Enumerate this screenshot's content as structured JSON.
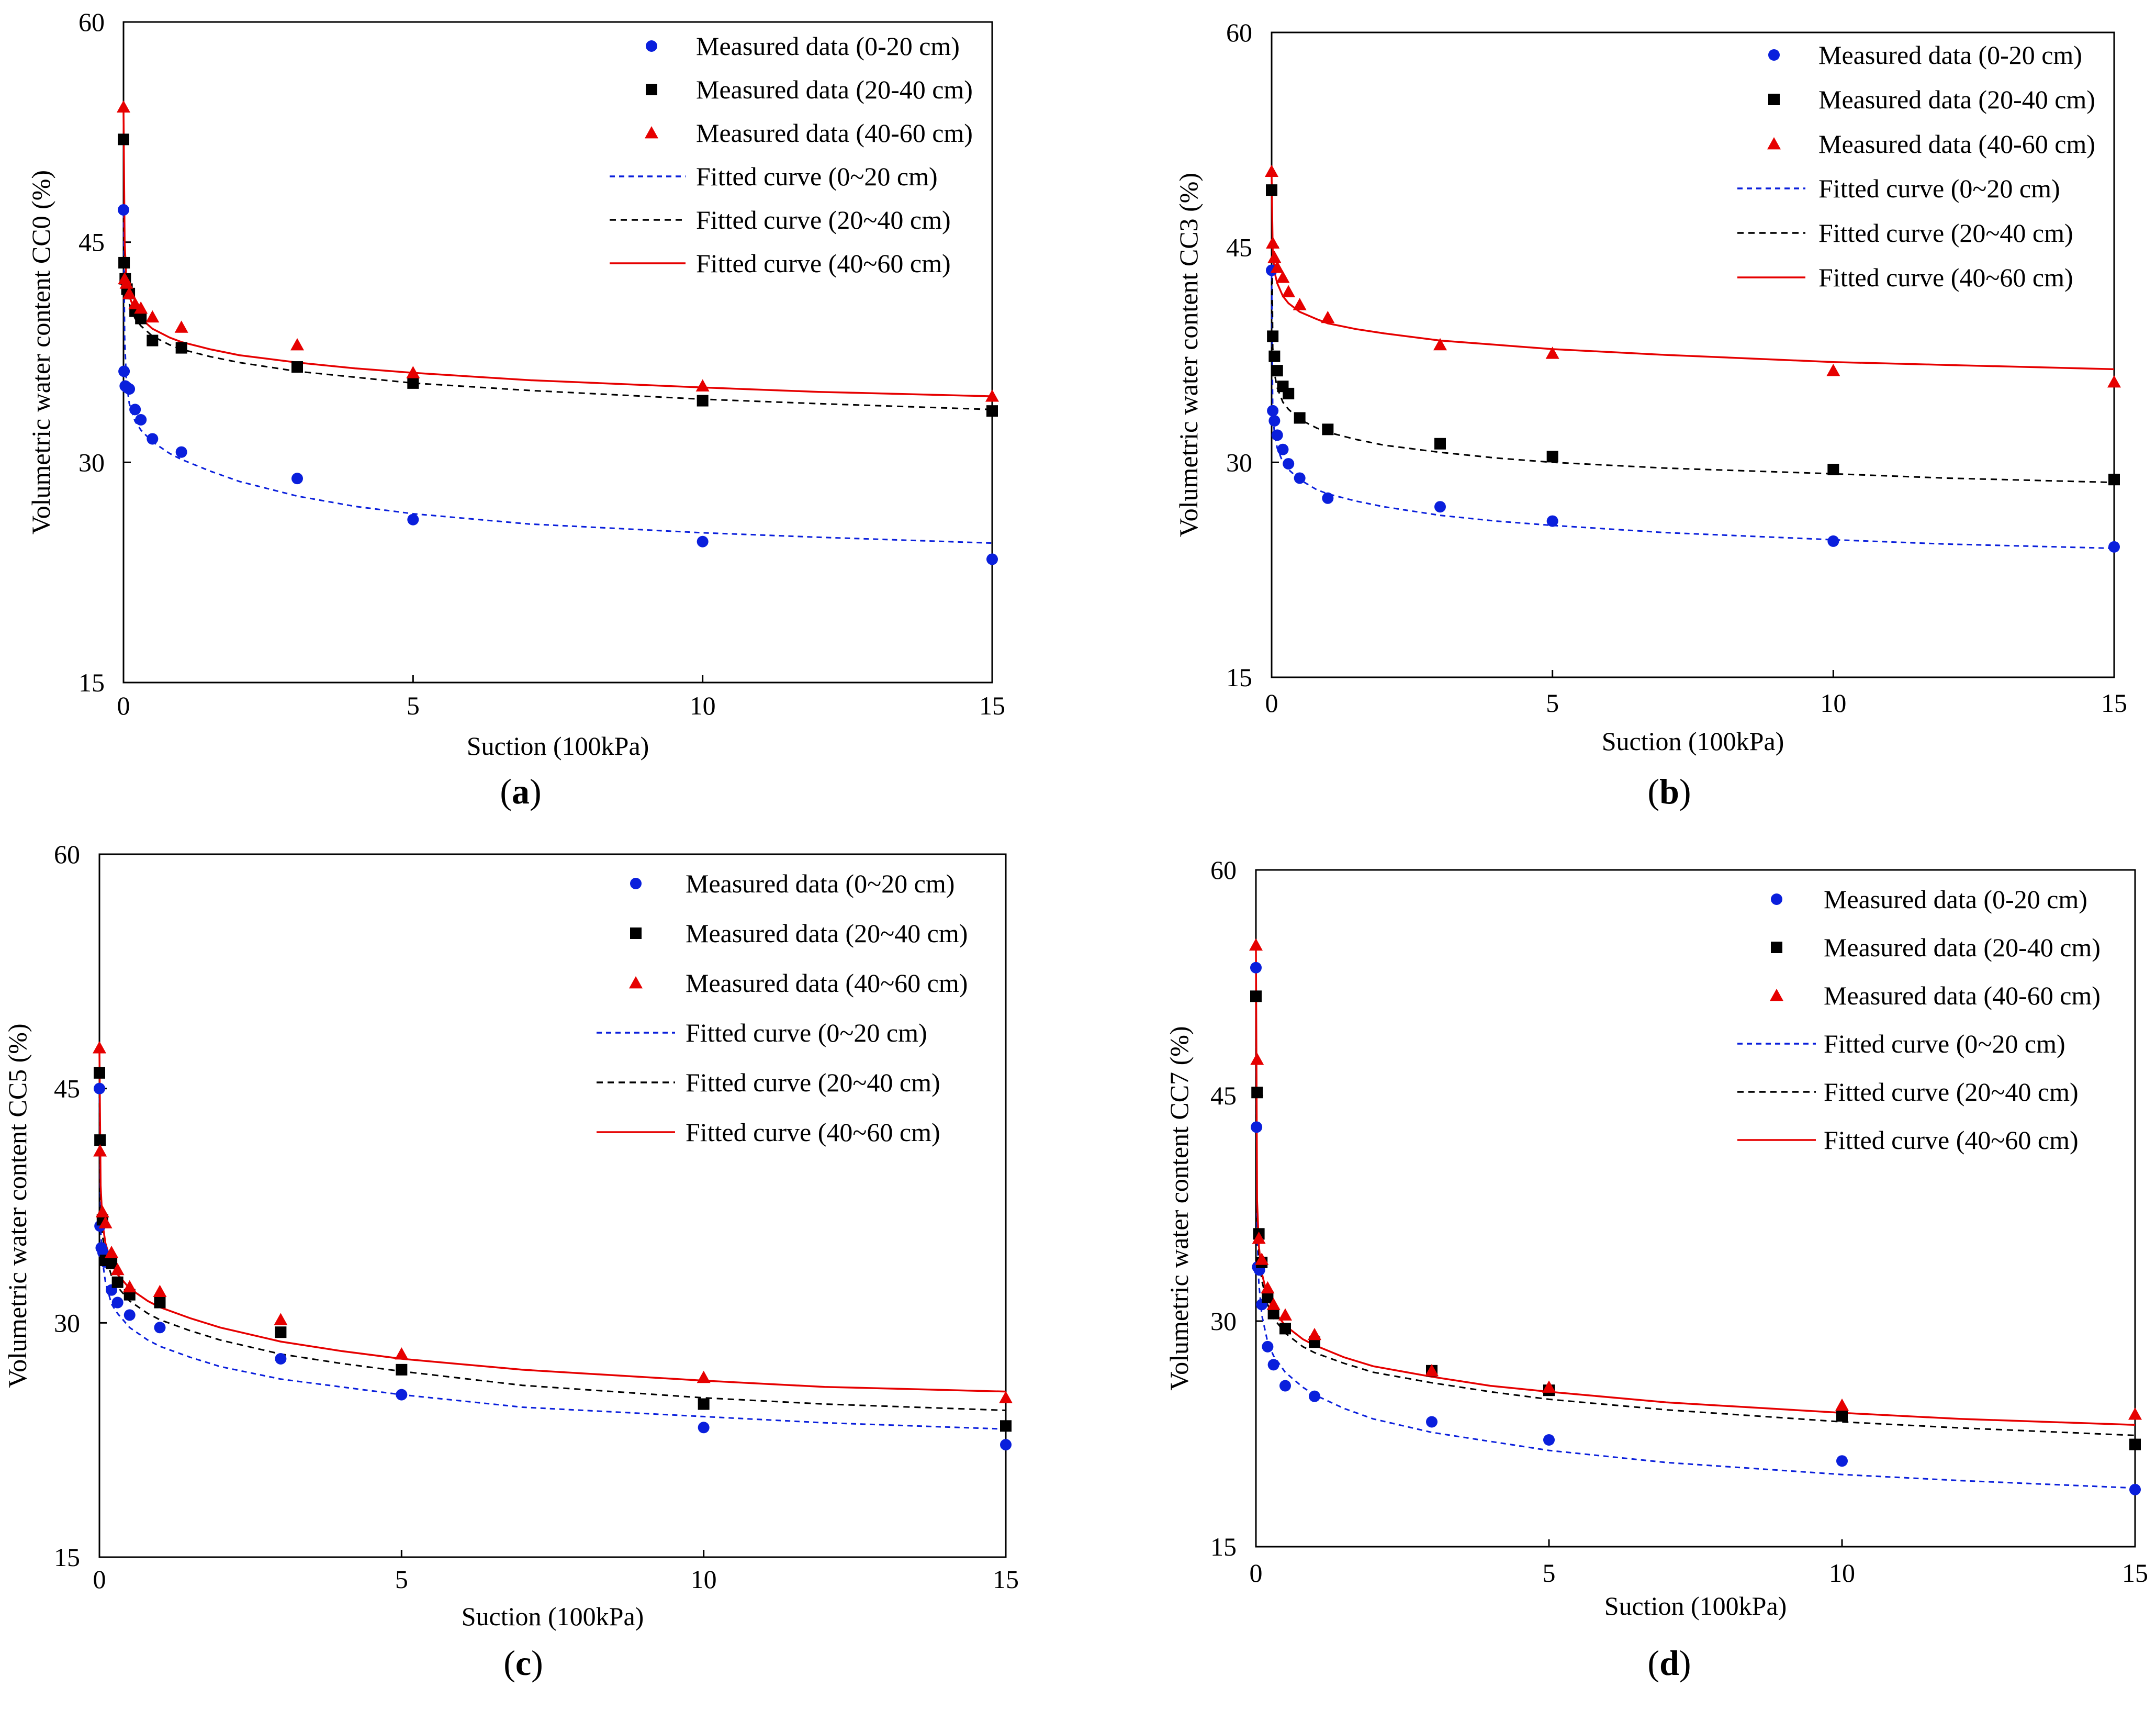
{
  "figure": {
    "colors": {
      "series_0_20": "#0a1fdc",
      "series_20_40": "#000000",
      "series_40_60": "#e60000"
    }
  },
  "chart_data": [
    {
      "panel": "(a)",
      "panel_letter": "a",
      "type": "scatter",
      "xlabel": "Suction (100kPa)",
      "ylabel": "Volumetric water content CC0 (%)",
      "xlim": [
        0,
        15
      ],
      "ylim": [
        15,
        60
      ],
      "xticks": [
        0,
        5,
        10,
        15
      ],
      "yticks": [
        15,
        30,
        45,
        60
      ],
      "legend_position": "top-right",
      "series": [
        {
          "name": "Measured data (0-20 cm)",
          "kind": "points",
          "marker": "circle",
          "color": "#0a1fdc",
          "x": [
            0,
            0.01,
            0.03,
            0.06,
            0.1,
            0.2,
            0.3,
            0.5,
            1,
            3,
            5,
            10,
            15
          ],
          "y": [
            47.2,
            36.2,
            35.2,
            35.1,
            35.0,
            33.6,
            32.9,
            31.6,
            30.7,
            28.9,
            26.1,
            24.6,
            23.4
          ]
        },
        {
          "name": "Measured data (20-40 cm)",
          "kind": "points",
          "marker": "square",
          "color": "#000000",
          "x": [
            0,
            0.01,
            0.03,
            0.06,
            0.1,
            0.2,
            0.3,
            0.5,
            1,
            3,
            5,
            10,
            15
          ],
          "y": [
            52.0,
            43.6,
            42.5,
            41.8,
            41.5,
            40.3,
            39.8,
            38.3,
            37.8,
            36.5,
            35.4,
            34.2,
            33.5
          ]
        },
        {
          "name": "Measured data (40-60 cm)",
          "kind": "points",
          "marker": "triangle",
          "color": "#e60000",
          "x": [
            0,
            0.02,
            0.05,
            0.1,
            0.2,
            0.3,
            0.5,
            1,
            3,
            5,
            10,
            15
          ],
          "y": [
            54.2,
            42.5,
            42.2,
            41.5,
            40.8,
            40.5,
            39.9,
            39.2,
            38.0,
            36.1,
            35.2,
            34.5
          ]
        },
        {
          "name": "Fitted curve (0~20 cm)",
          "kind": "curve",
          "dash": "10,8",
          "color": "#0a1fdc",
          "x": [
            0,
            0.02,
            0.05,
            0.1,
            0.2,
            0.3,
            0.5,
            0.8,
            1,
            1.5,
            2,
            3,
            4,
            5,
            7,
            10,
            12,
            15
          ],
          "y": [
            47.0,
            38.5,
            35.5,
            34.0,
            32.8,
            32.2,
            31.4,
            30.6,
            30.2,
            29.4,
            28.7,
            27.7,
            27.0,
            26.5,
            25.8,
            25.2,
            24.9,
            24.5
          ]
        },
        {
          "name": "Fitted curve (20~40 cm)",
          "kind": "curve",
          "dash": "12,9",
          "color": "#000000",
          "x": [
            0,
            0.02,
            0.05,
            0.1,
            0.2,
            0.3,
            0.5,
            0.8,
            1,
            1.5,
            2,
            3,
            4,
            5,
            7,
            10,
            12,
            15
          ],
          "y": [
            52.0,
            44.0,
            42.0,
            40.8,
            39.8,
            39.3,
            38.6,
            38.0,
            37.7,
            37.2,
            36.8,
            36.2,
            35.8,
            35.4,
            34.9,
            34.3,
            34.0,
            33.6
          ]
        },
        {
          "name": "Fitted curve (40~60 cm)",
          "kind": "curve",
          "dash": "",
          "color": "#e60000",
          "x": [
            0,
            0.02,
            0.05,
            0.1,
            0.2,
            0.3,
            0.5,
            0.8,
            1,
            1.5,
            2,
            3,
            4,
            5,
            7,
            10,
            12,
            15
          ],
          "y": [
            54.0,
            45.0,
            42.5,
            41.3,
            40.3,
            39.8,
            39.1,
            38.5,
            38.2,
            37.7,
            37.3,
            36.8,
            36.4,
            36.1,
            35.6,
            35.1,
            34.8,
            34.5
          ]
        }
      ]
    },
    {
      "panel": "(b)",
      "panel_letter": "b",
      "type": "scatter",
      "xlabel": "Suction (100kPa)",
      "ylabel": "Volumetric water content CC3 (%)",
      "xlim": [
        0,
        15
      ],
      "ylim": [
        15,
        60
      ],
      "xticks": [
        0,
        5,
        10,
        15
      ],
      "yticks": [
        15,
        30,
        45,
        60
      ],
      "legend_position": "top-right",
      "series": [
        {
          "name": "Measured data (0-20 cm)",
          "kind": "points",
          "marker": "circle",
          "color": "#0a1fdc",
          "x": [
            0,
            0.02,
            0.05,
            0.1,
            0.2,
            0.3,
            0.5,
            1,
            3,
            5,
            10,
            15
          ],
          "y": [
            43.4,
            33.6,
            32.9,
            31.9,
            30.9,
            29.9,
            28.9,
            27.5,
            26.9,
            25.9,
            24.5,
            24.1
          ]
        },
        {
          "name": "Measured data (20-40 cm)",
          "kind": "points",
          "marker": "square",
          "color": "#000000",
          "x": [
            0,
            0.02,
            0.05,
            0.1,
            0.2,
            0.3,
            0.5,
            1,
            3,
            5,
            10,
            15
          ],
          "y": [
            49.0,
            38.8,
            37.4,
            36.4,
            35.3,
            34.8,
            33.1,
            32.3,
            31.3,
            30.4,
            29.5,
            28.8
          ]
        },
        {
          "name": "Measured data (40-60 cm)",
          "kind": "points",
          "marker": "triangle",
          "color": "#e60000",
          "x": [
            0,
            0.02,
            0.05,
            0.1,
            0.2,
            0.3,
            0.5,
            1,
            3,
            5,
            10,
            15
          ],
          "y": [
            50.3,
            45.3,
            44.3,
            43.6,
            42.9,
            41.9,
            41.0,
            40.1,
            38.2,
            37.6,
            36.4,
            35.6
          ]
        },
        {
          "name": "Fitted curve (0~20 cm)",
          "kind": "curve",
          "dash": "10,8",
          "color": "#0a1fdc",
          "x": [
            0,
            0.02,
            0.05,
            0.1,
            0.2,
            0.3,
            0.5,
            0.8,
            1,
            1.5,
            2,
            3,
            4,
            5,
            7,
            10,
            12,
            15
          ],
          "y": [
            43.0,
            33.5,
            32.0,
            31.0,
            30.0,
            29.5,
            28.8,
            28.1,
            27.8,
            27.3,
            26.9,
            26.3,
            25.9,
            25.6,
            25.1,
            24.6,
            24.3,
            24.0
          ]
        },
        {
          "name": "Fitted curve (20~40 cm)",
          "kind": "curve",
          "dash": "12,9",
          "color": "#000000",
          "x": [
            0,
            0.02,
            0.05,
            0.1,
            0.2,
            0.3,
            0.5,
            0.8,
            1,
            1.5,
            2,
            3,
            4,
            5,
            7,
            10,
            12,
            15
          ],
          "y": [
            49.0,
            38.0,
            36.2,
            35.2,
            34.2,
            33.7,
            33.0,
            32.4,
            32.1,
            31.6,
            31.2,
            30.7,
            30.3,
            30.0,
            29.6,
            29.2,
            28.9,
            28.6
          ]
        },
        {
          "name": "Fitted curve (40~60 cm)",
          "kind": "curve",
          "dash": "",
          "color": "#e60000",
          "x": [
            0,
            0.02,
            0.05,
            0.1,
            0.2,
            0.3,
            0.5,
            0.8,
            1,
            1.5,
            2,
            3,
            4,
            5,
            7,
            10,
            12,
            15
          ],
          "y": [
            50.0,
            44.8,
            43.3,
            42.5,
            41.6,
            41.1,
            40.5,
            40.0,
            39.7,
            39.3,
            39.0,
            38.5,
            38.2,
            37.9,
            37.5,
            37.0,
            36.8,
            36.5
          ]
        }
      ]
    },
    {
      "panel": "(c)",
      "panel_letter": "c",
      "type": "scatter",
      "xlabel": "Suction (100kPa)",
      "ylabel": "Volumetric water content CC5 (%)",
      "xlim": [
        0,
        15
      ],
      "ylim": [
        15,
        60
      ],
      "xticks": [
        0,
        5,
        10,
        15
      ],
      "yticks": [
        15,
        30,
        45,
        60
      ],
      "legend_position": "top-right",
      "series": [
        {
          "name": "Measured data (0~20 cm)",
          "kind": "points",
          "marker": "circle",
          "color": "#0a1fdc",
          "x": [
            0,
            0.01,
            0.03,
            0.06,
            0.1,
            0.2,
            0.3,
            0.5,
            1,
            3,
            5,
            10,
            15
          ],
          "y": [
            45.0,
            36.2,
            34.8,
            34.5,
            33.9,
            32.1,
            31.3,
            30.5,
            29.7,
            27.7,
            25.4,
            23.3,
            22.2
          ]
        },
        {
          "name": "Measured data (20~40 cm)",
          "kind": "points",
          "marker": "square",
          "color": "#000000",
          "x": [
            0,
            0.01,
            0.05,
            0.1,
            0.2,
            0.3,
            0.5,
            1,
            3,
            5,
            10,
            15
          ],
          "y": [
            46.0,
            41.7,
            36.6,
            34.0,
            33.8,
            32.6,
            31.8,
            31.3,
            29.4,
            27.0,
            24.8,
            23.4
          ]
        },
        {
          "name": "Measured data (40~60 cm)",
          "kind": "points",
          "marker": "triangle",
          "color": "#e60000",
          "x": [
            0,
            0.01,
            0.05,
            0.1,
            0.2,
            0.3,
            0.5,
            1,
            3,
            5,
            10,
            15
          ],
          "y": [
            47.6,
            41.0,
            37.1,
            36.4,
            34.5,
            33.4,
            32.3,
            32.0,
            30.2,
            28.0,
            26.5,
            25.2
          ]
        },
        {
          "name": "Fitted curve (0~20 cm)",
          "kind": "curve",
          "dash": "10,8",
          "color": "#0a1fdc",
          "x": [
            0,
            0.02,
            0.05,
            0.1,
            0.2,
            0.3,
            0.5,
            0.8,
            1,
            1.5,
            2,
            3,
            4,
            5,
            7,
            10,
            12,
            15
          ],
          "y": [
            45.0,
            36.0,
            34.0,
            32.6,
            31.2,
            30.6,
            29.7,
            28.9,
            28.5,
            27.8,
            27.2,
            26.4,
            25.9,
            25.4,
            24.6,
            24.0,
            23.6,
            23.2
          ]
        },
        {
          "name": "Fitted curve (20~40 cm)",
          "kind": "curve",
          "dash": "12,9",
          "color": "#000000",
          "x": [
            0,
            0.02,
            0.05,
            0.1,
            0.2,
            0.3,
            0.5,
            0.8,
            1,
            1.5,
            2,
            3,
            4,
            5,
            7,
            10,
            12,
            15
          ],
          "y": [
            46.0,
            38.0,
            35.6,
            34.3,
            33.0,
            32.3,
            31.4,
            30.6,
            30.2,
            29.5,
            28.9,
            28.0,
            27.4,
            26.9,
            26.0,
            25.2,
            24.8,
            24.4
          ]
        },
        {
          "name": "Fitted curve (40~60 cm)",
          "kind": "curve",
          "dash": "",
          "color": "#e60000",
          "x": [
            0,
            0.02,
            0.05,
            0.1,
            0.2,
            0.3,
            0.5,
            0.8,
            1,
            1.5,
            2,
            3,
            4,
            5,
            7,
            10,
            12,
            15
          ],
          "y": [
            47.5,
            38.8,
            36.4,
            35.1,
            33.8,
            33.1,
            32.2,
            31.4,
            31.0,
            30.3,
            29.7,
            28.8,
            28.2,
            27.7,
            27.0,
            26.3,
            25.9,
            25.6
          ]
        }
      ]
    },
    {
      "panel": "(d)",
      "panel_letter": "d",
      "type": "scatter",
      "xlabel": "Suction (100kPa)",
      "ylabel": "Volumetric water content CC7 (%)",
      "xlim": [
        0,
        15
      ],
      "ylim": [
        15,
        60
      ],
      "xticks": [
        0,
        5,
        10,
        15
      ],
      "yticks": [
        15,
        30,
        45,
        60
      ],
      "legend_position": "top-right",
      "series": [
        {
          "name": "Measured data (0-20 cm)",
          "kind": "points",
          "marker": "circle",
          "color": "#0a1fdc",
          "x": [
            0,
            0.01,
            0.03,
            0.06,
            0.1,
            0.2,
            0.3,
            0.5,
            1,
            3,
            5,
            10,
            15
          ],
          "y": [
            53.5,
            42.9,
            33.6,
            33.4,
            31.1,
            28.3,
            27.1,
            25.7,
            25.0,
            23.3,
            22.1,
            20.7,
            18.8
          ]
        },
        {
          "name": "Measured data (20-40 cm)",
          "kind": "points",
          "marker": "square",
          "color": "#000000",
          "x": [
            0,
            0.02,
            0.05,
            0.1,
            0.2,
            0.3,
            0.5,
            1,
            3,
            5,
            10,
            15
          ],
          "y": [
            51.6,
            45.2,
            35.8,
            33.9,
            31.6,
            30.5,
            29.5,
            28.6,
            26.7,
            25.4,
            23.7,
            21.8
          ]
        },
        {
          "name": "Measured data (40-60 cm)",
          "kind": "points",
          "marker": "triangle",
          "color": "#e60000",
          "x": [
            0,
            0.02,
            0.05,
            0.1,
            0.2,
            0.3,
            0.5,
            1,
            3,
            5,
            10,
            15
          ],
          "y": [
            55.0,
            47.4,
            35.5,
            34.1,
            32.2,
            31.1,
            30.4,
            29.1,
            26.7,
            25.6,
            24.4,
            23.8
          ]
        },
        {
          "name": "Fitted curve (0~20 cm)",
          "kind": "curve",
          "dash": "10,8",
          "color": "#0a1fdc",
          "x": [
            0,
            0.02,
            0.05,
            0.1,
            0.2,
            0.3,
            0.5,
            0.8,
            1,
            1.5,
            2,
            3,
            4,
            5,
            7,
            10,
            12,
            15
          ],
          "y": [
            53.5,
            36.0,
            32.5,
            30.4,
            28.6,
            27.7,
            26.6,
            25.6,
            25.1,
            24.2,
            23.5,
            22.6,
            22.0,
            21.4,
            20.6,
            19.8,
            19.4,
            18.9
          ]
        },
        {
          "name": "Fitted curve (20~40 cm)",
          "kind": "curve",
          "dash": "12,9",
          "color": "#000000",
          "x": [
            0,
            0.02,
            0.05,
            0.1,
            0.2,
            0.3,
            0.5,
            0.8,
            1,
            1.5,
            2,
            3,
            4,
            5,
            7,
            10,
            12,
            15
          ],
          "y": [
            51.6,
            37.5,
            34.5,
            32.7,
            31.1,
            30.2,
            29.2,
            28.3,
            27.9,
            27.2,
            26.6,
            25.9,
            25.3,
            24.8,
            24.1,
            23.3,
            22.9,
            22.4
          ]
        },
        {
          "name": "Fitted curve (40~60 cm)",
          "kind": "curve",
          "dash": "",
          "color": "#e60000",
          "x": [
            0,
            0.02,
            0.05,
            0.1,
            0.2,
            0.3,
            0.5,
            0.8,
            1,
            1.5,
            2,
            3,
            4,
            5,
            7,
            10,
            12,
            15
          ],
          "y": [
            55.0,
            38.0,
            35.0,
            33.2,
            31.6,
            30.7,
            29.7,
            28.8,
            28.4,
            27.6,
            27.0,
            26.3,
            25.7,
            25.3,
            24.6,
            23.9,
            23.5,
            23.1
          ]
        }
      ]
    }
  ]
}
